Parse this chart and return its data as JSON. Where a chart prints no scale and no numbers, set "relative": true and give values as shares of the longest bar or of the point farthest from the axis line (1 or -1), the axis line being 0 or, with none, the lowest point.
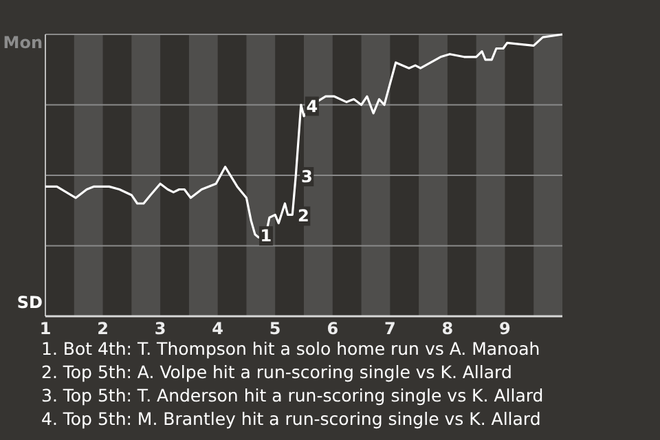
{
  "chart_data": {
    "type": "line",
    "relative": true,
    "grid": "y",
    "xlim": [
      1,
      10
    ],
    "xticks": [
      1,
      2,
      3,
      4,
      5,
      6,
      7,
      8,
      9
    ],
    "bands": [
      {
        "axis": "x",
        "from": 1.5,
        "to": 2,
        "color": "#4f4e4c"
      },
      {
        "axis": "x",
        "from": 2.5,
        "to": 3,
        "color": "#4f4e4c"
      },
      {
        "axis": "x",
        "from": 3.5,
        "to": 4,
        "color": "#4f4e4c"
      },
      {
        "axis": "x",
        "from": 4.5,
        "to": 5,
        "color": "#4f4e4c"
      },
      {
        "axis": "x",
        "from": 5.5,
        "to": 6,
        "color": "#4f4e4c"
      },
      {
        "axis": "x",
        "from": 6.5,
        "to": 7,
        "color": "#4f4e4c"
      },
      {
        "axis": "x",
        "from": 7.5,
        "to": 8,
        "color": "#4f4e4c"
      },
      {
        "axis": "x",
        "from": 8.5,
        "to": 9,
        "color": "#4f4e4c"
      },
      {
        "axis": "x",
        "from": 9.5,
        "to": 10,
        "color": "#4f4e4c"
      }
    ],
    "series": [
      {
        "color": "#ffffff",
        "x": [
          1,
          1.2,
          1.53,
          1.72,
          1.84,
          2.11,
          2.29,
          2.5,
          2.6,
          2.71,
          2.83,
          3,
          3.13,
          3.23,
          3.33,
          3.42,
          3.53,
          3.72,
          3.97,
          4.13,
          4.34,
          4.5,
          4.58,
          4.65,
          4.71,
          4.83,
          4.9,
          5,
          5.06,
          5.17,
          5.22,
          5.3,
          5.36,
          5.45,
          5.5,
          5.72,
          5.88,
          6.03,
          6.24,
          6.37,
          6.5,
          6.6,
          6.71,
          6.81,
          6.9,
          6.98,
          7.1,
          7.33,
          7.44,
          7.53,
          7.88,
          8.04,
          8.29,
          8.5,
          8.6,
          8.66,
          8.77,
          8.85,
          8.97,
          9.04,
          9.5,
          9.66,
          10
        ],
        "values": [
          0.46,
          0.46,
          0.42,
          0.45,
          0.46,
          0.46,
          0.45,
          0.43,
          0.4,
          0.4,
          0.43,
          0.47,
          0.45,
          0.44,
          0.45,
          0.45,
          0.42,
          0.45,
          0.47,
          0.53,
          0.46,
          0.42,
          0.34,
          0.29,
          0.28,
          0.28,
          0.35,
          0.36,
          0.33,
          0.4,
          0.36,
          0.36,
          0.5,
          0.75,
          0.71,
          0.76,
          0.78,
          0.78,
          0.76,
          0.77,
          0.75,
          0.78,
          0.72,
          0.77,
          0.75,
          0.81,
          0.9,
          0.88,
          0.89,
          0.88,
          0.92,
          0.93,
          0.92,
          0.92,
          0.94,
          0.91,
          0.91,
          0.95,
          0.95,
          0.97,
          0.96,
          0.99,
          1
        ]
      }
    ],
    "annotations": [
      "Mon",
      "SD",
      {
        "text": "1",
        "x": 4.65,
        "y": 0.29
      },
      {
        "text": "2",
        "x": 5.3,
        "y": 0.36
      },
      {
        "text": "3",
        "x": 5.36,
        "y": 0.5
      },
      {
        "text": "4",
        "x": 5.45,
        "y": 0.75
      },
      "1. Bot 4th: T. Thompson hit a solo home run vs A. Manoah",
      "2. Top 5th: A. Volpe hit a run-scoring single vs K. Allard",
      "3. Top 5th: T. Anderson hit a run-scoring single vs K. Allard",
      "4. Top 5th: M. Brantley hit a run-scoring single vs K. Allard"
    ]
  }
}
